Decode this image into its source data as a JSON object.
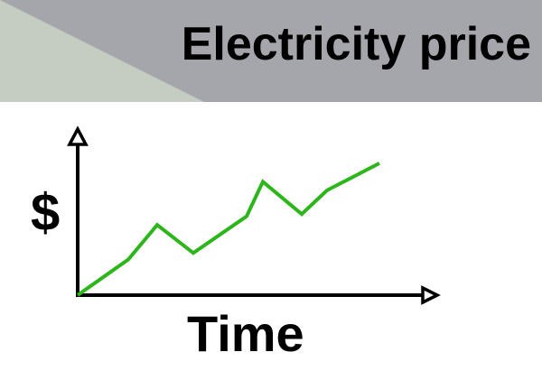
{
  "header": {
    "title": "Electricity price",
    "band_color": "#a5a6ab",
    "accent_color": "#c5cdc2"
  },
  "chart_data": {
    "type": "line",
    "title": "Electricity price",
    "xlabel": "Time",
    "ylabel": "$",
    "line_color": "#2db61b",
    "grid": false,
    "series": [
      {
        "values": [
          {
            "x": 0,
            "y": 0.0
          },
          {
            "x": 56,
            "y": 0.165
          },
          {
            "x": 88,
            "y": 0.325
          },
          {
            "x": 128,
            "y": 0.195
          },
          {
            "x": 187,
            "y": 0.365
          },
          {
            "x": 205,
            "y": 0.525
          },
          {
            "x": 248,
            "y": 0.375
          },
          {
            "x": 276,
            "y": 0.485
          },
          {
            "x": 334,
            "y": 0.61
          }
        ]
      }
    ],
    "xlim": [
      0,
      400
    ],
    "ylim": [
      0,
      0.71
    ]
  }
}
